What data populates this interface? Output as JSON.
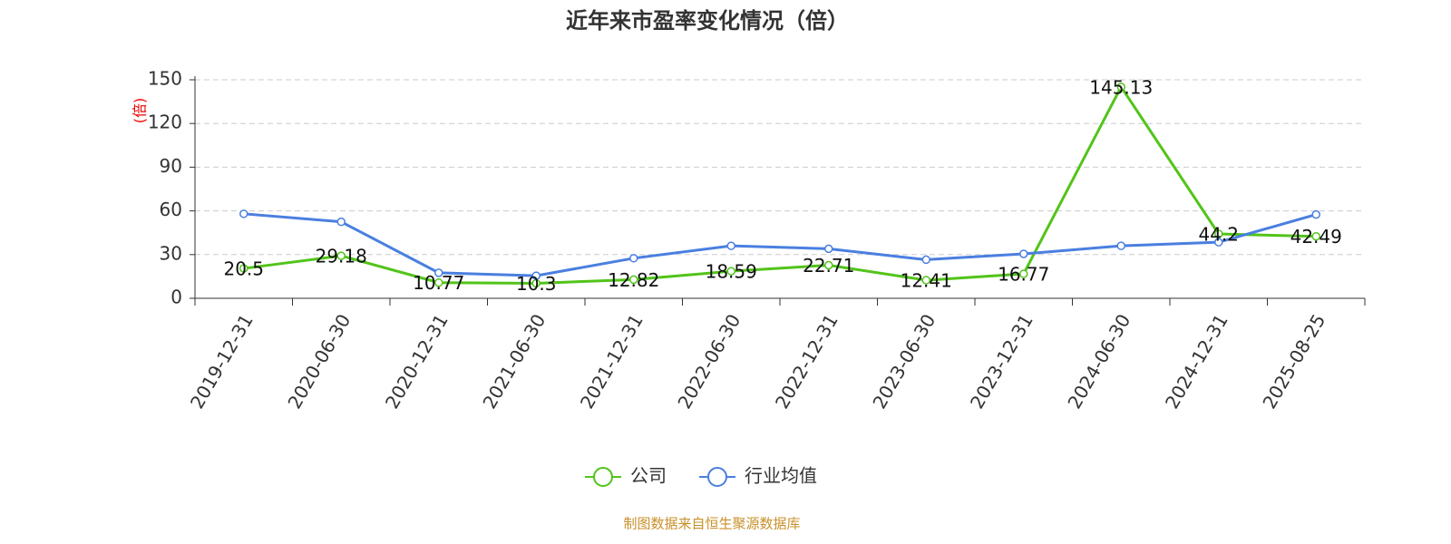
{
  "chart_data": {
    "type": "line",
    "title": "近年来市盈率变化情况（倍）",
    "y_label": "(倍)",
    "categories": [
      "2019-12-31",
      "2020-06-30",
      "2020-12-31",
      "2021-06-30",
      "2021-12-31",
      "2022-06-30",
      "2022-12-31",
      "2023-06-30",
      "2023-12-31",
      "2024-06-30",
      "2024-12-31",
      "2025-08-25"
    ],
    "series": [
      {
        "name": "公司",
        "color": "#52c41a",
        "values": [
          20.5,
          29.18,
          10.77,
          10.3,
          12.82,
          18.59,
          22.71,
          12.41,
          16.77,
          145.13,
          44.2,
          42.49
        ]
      },
      {
        "name": "行业均值",
        "color": "#4a7fe0",
        "values": [
          58,
          52.5,
          17.5,
          15.5,
          27.5,
          36,
          34,
          26.5,
          30.5,
          36,
          38.5,
          57.5
        ]
      }
    ],
    "ylim": [
      0,
      150
    ],
    "yticks": [
      0,
      30,
      60,
      90,
      120,
      150
    ],
    "grid": true,
    "source": "制图数据来自恒生聚源数据库"
  }
}
